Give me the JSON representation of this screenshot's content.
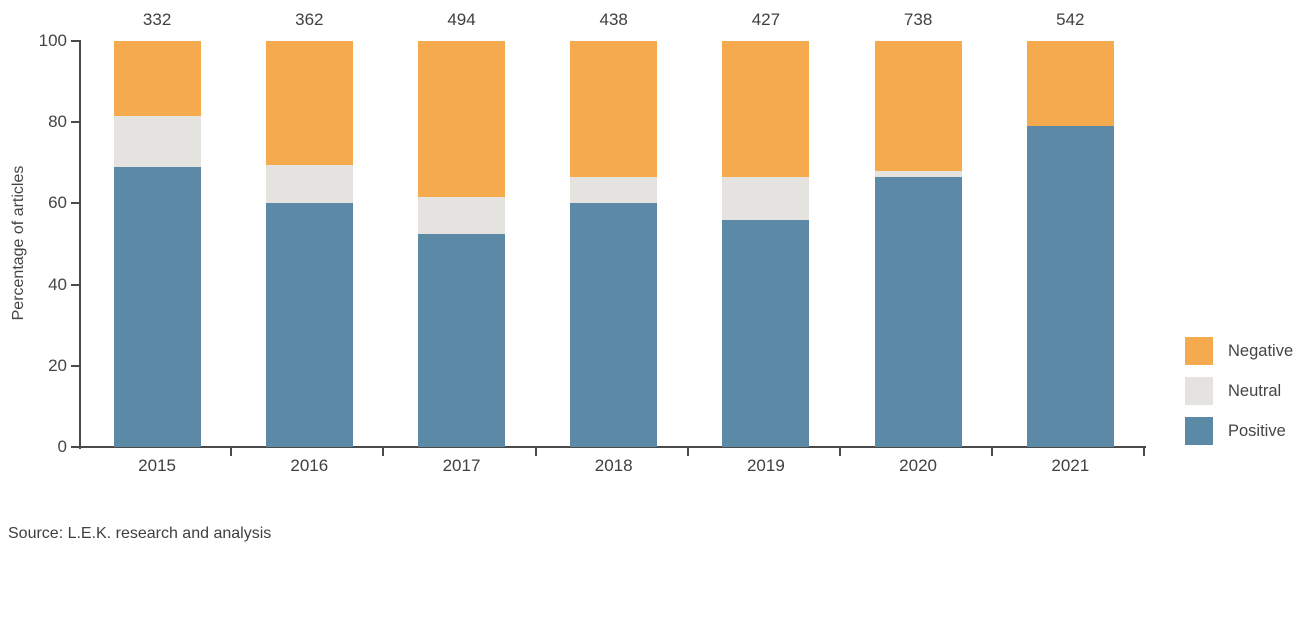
{
  "chart_data": {
    "type": "bar",
    "stacked": true,
    "ylabel": "Percentage of articles",
    "xlabel": "",
    "ylim": [
      0,
      100
    ],
    "yticks": [
      0,
      20,
      40,
      60,
      80,
      100
    ],
    "categories": [
      "2015",
      "2016",
      "2017",
      "2018",
      "2019",
      "2020",
      "2021"
    ],
    "bar_totals": [
      "332",
      "362",
      "494",
      "438",
      "427",
      "738",
      "542"
    ],
    "series": [
      {
        "name": "Positive",
        "color": "#5C89A5",
        "values": [
          69,
          60,
          52.5,
          60,
          56,
          66.5,
          79
        ]
      },
      {
        "name": "Neutral",
        "color": "#E4E3E0",
        "values": [
          12.5,
          9.5,
          9,
          6.5,
          10.5,
          1.5,
          0
        ]
      },
      {
        "name": "Negative",
        "color": "#F5AA4D",
        "values": [
          18.5,
          30.5,
          38.5,
          33.5,
          33.5,
          32,
          21
        ]
      }
    ],
    "legend": {
      "position": "right",
      "items": [
        {
          "label": "Negative",
          "color": "#F5AA4D"
        },
        {
          "label": "Neutral",
          "color": "#E4E3E0"
        },
        {
          "label": "Positive",
          "color": "#5C89A5"
        }
      ]
    },
    "grid": false
  },
  "source_note": "Source: L.E.K. research and analysis",
  "colors": {
    "axis": "#4a4a4a",
    "text": "#404040"
  }
}
